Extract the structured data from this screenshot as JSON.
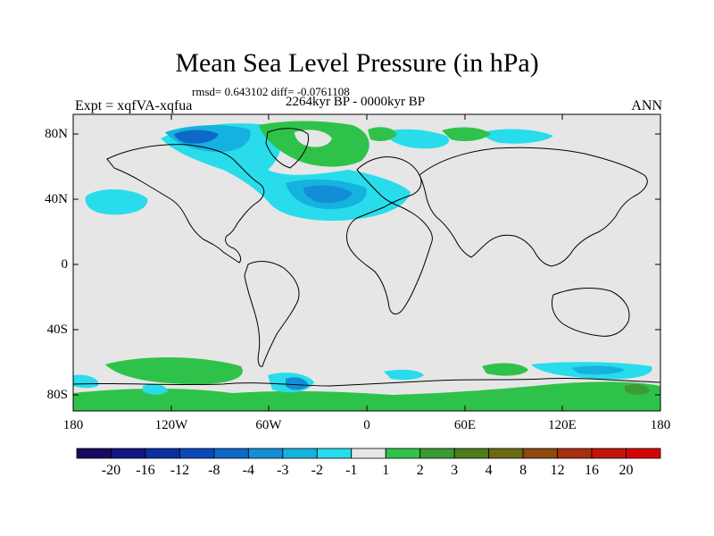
{
  "title": "Mean Sea Level Pressure (in hPa)",
  "stats": "rmsd= 0.643102 diff= -0.0761108",
  "period": "2264kyr BP - 0000kyr BP",
  "experiment": "Expt = xqfVA-xqfua",
  "season": "ANN",
  "lat_labels": [
    "80N",
    "40N",
    "0",
    "40S",
    "80S"
  ],
  "lon_labels": [
    "180",
    "120W",
    "60W",
    "0",
    "60E",
    "120E",
    "180"
  ],
  "colorbar": {
    "labels": [
      "-20",
      "-16",
      "-12",
      "-8",
      "-4",
      "-3",
      "-2",
      "-1",
      "1",
      "2",
      "3",
      "4",
      "8",
      "12",
      "16",
      "20"
    ],
    "colors": [
      "#1a0a5e",
      "#141682",
      "#0c2ea0",
      "#0a4ab8",
      "#0e68c8",
      "#138ed6",
      "#15b2df",
      "#28dceb",
      "#e6e6e6",
      "#2fc24a",
      "#3c9a32",
      "#4c7d1c",
      "#6b6a12",
      "#8e4a10",
      "#a8300e",
      "#c41608",
      "#d40404"
    ]
  },
  "colors": {
    "background": "#e6e6e6",
    "coast": "#000000"
  }
}
